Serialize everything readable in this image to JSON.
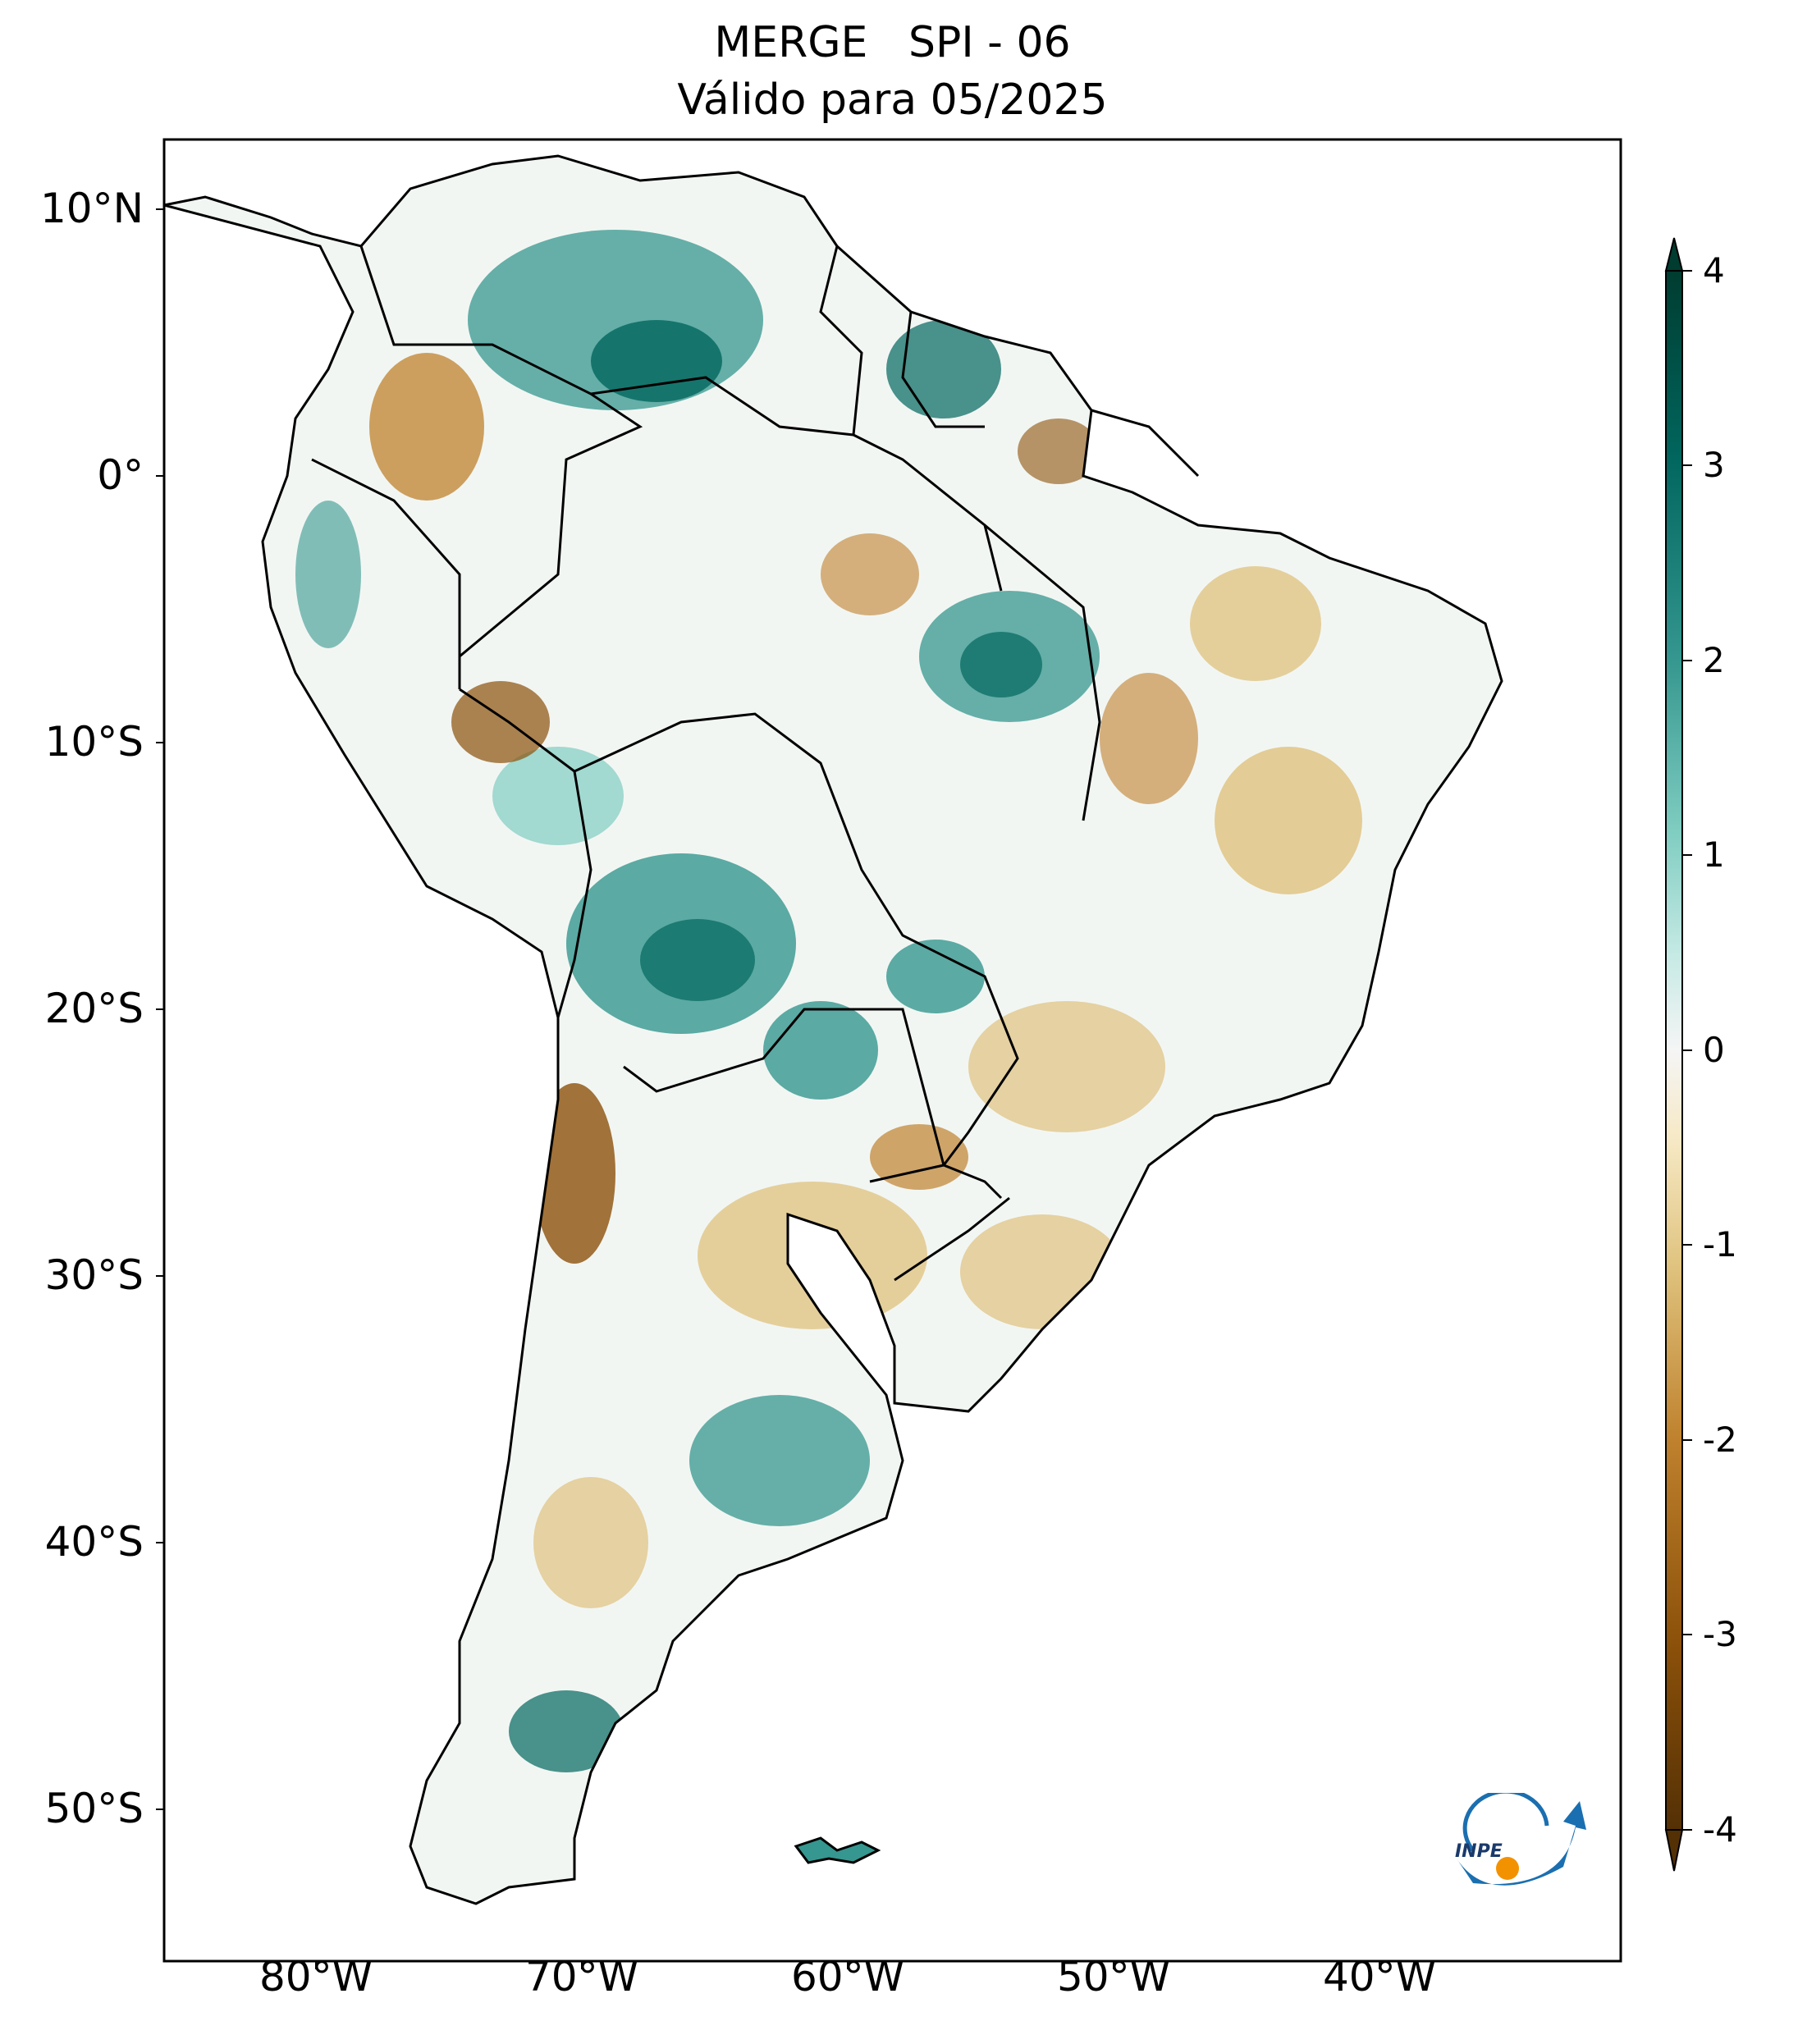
{
  "title": {
    "line1": "MERGE   SPI - 06",
    "line2": "Válido para 05/2025"
  },
  "axes": {
    "lat_ticks": [
      "10°N",
      "0°",
      "10°S",
      "20°S",
      "30°S",
      "40°S",
      "50°S"
    ],
    "lon_ticks": [
      "80°W",
      "70°W",
      "60°W",
      "50°W",
      "40°W"
    ]
  },
  "colorbar": {
    "ticks": [
      "4",
      "3",
      "2",
      "1",
      "0",
      "-1",
      "-2",
      "-3",
      "-4"
    ],
    "min": -4,
    "max": 4,
    "colors": {
      "strong_wet": "#003c30",
      "wet": "#01665e",
      "moderate_wet": "#35978f",
      "light_wet": "#80cdc1",
      "faint_wet": "#c7eae5",
      "neutral": "#f5f5f5",
      "faint_dry": "#f6e8c3",
      "light_dry": "#dfc27d",
      "moderate_dry": "#bf812d",
      "dry": "#8c510a",
      "strong_dry": "#543005"
    }
  },
  "map": {
    "region": "South America",
    "lon_range": [
      -85,
      -30
    ],
    "lat_range": [
      -56,
      13
    ]
  },
  "logo": {
    "text": "INPE"
  }
}
